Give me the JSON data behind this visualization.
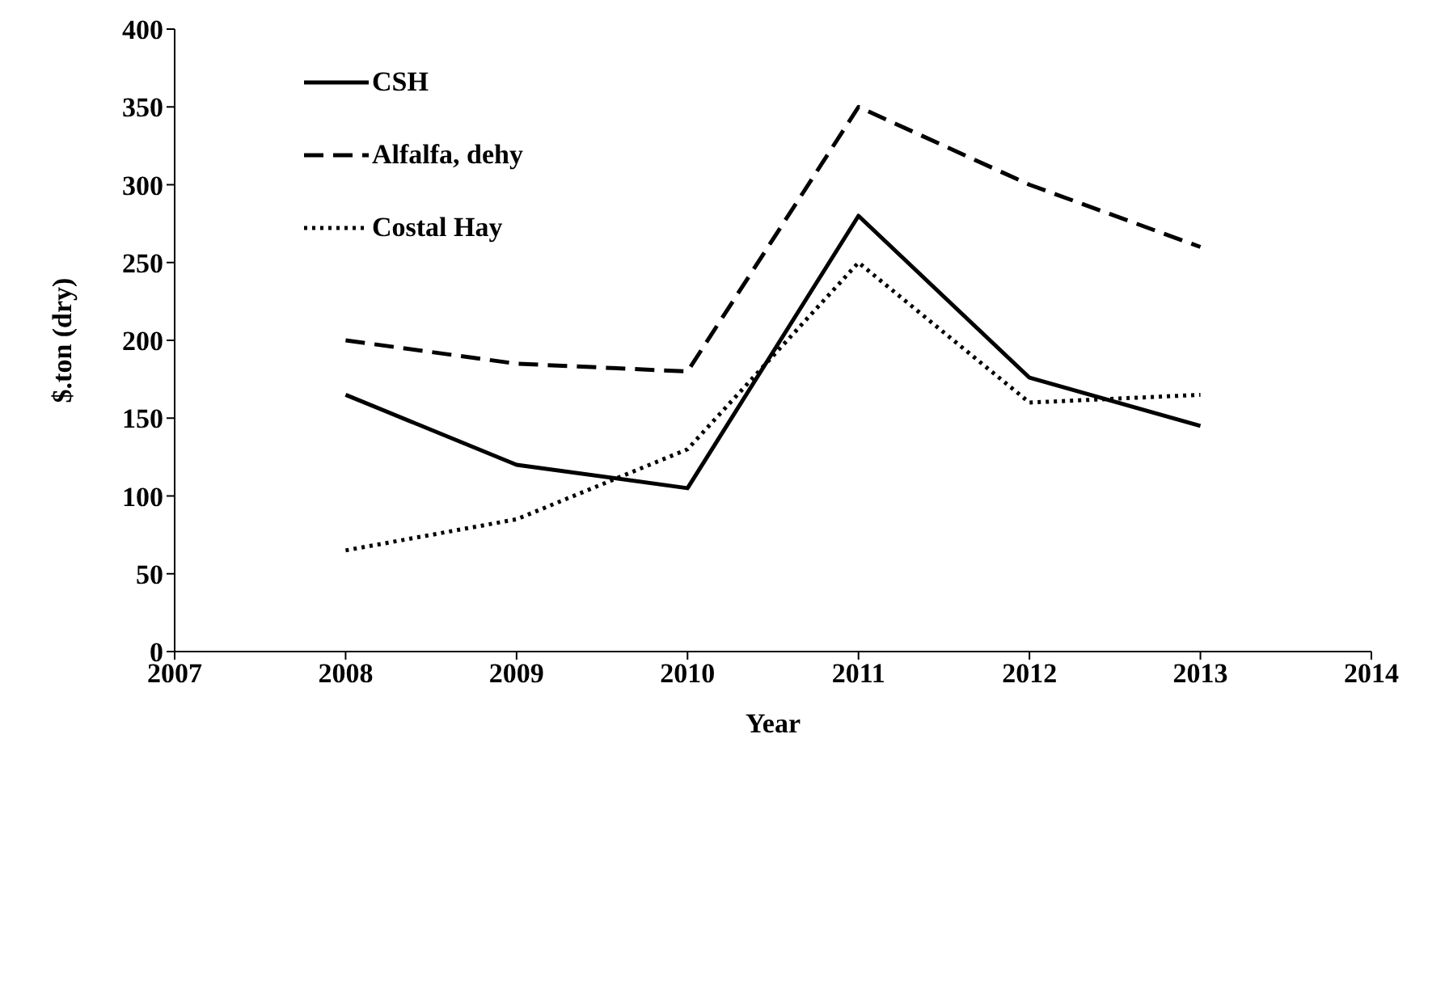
{
  "chart_data": {
    "type": "line",
    "xlabel": "Year",
    "ylabel": "$.ton (dry)",
    "x": [
      2008,
      2009,
      2010,
      2011,
      2012,
      2013
    ],
    "xlim": [
      2007,
      2014
    ],
    "xticks": [
      2007,
      2008,
      2009,
      2010,
      2011,
      2012,
      2013,
      2014
    ],
    "ylim": [
      0,
      400
    ],
    "yticks": [
      0,
      50,
      100,
      150,
      200,
      250,
      300,
      350,
      400
    ],
    "grid": false,
    "legend": "top left",
    "marker": "none",
    "series": [
      {
        "name": "CSH",
        "color": "#000000",
        "line_style": "solid",
        "values": [
          165,
          120,
          105,
          280,
          176,
          145
        ]
      },
      {
        "name": "Alfalfa, dehy",
        "color": "#000000",
        "line_style": "dashed",
        "values": [
          200,
          185,
          180,
          350,
          300,
          260
        ]
      },
      {
        "name": "Costal Hay",
        "color": "#000000",
        "line_style": "dotted",
        "values": [
          65,
          85,
          130,
          250,
          160,
          165
        ]
      }
    ]
  }
}
